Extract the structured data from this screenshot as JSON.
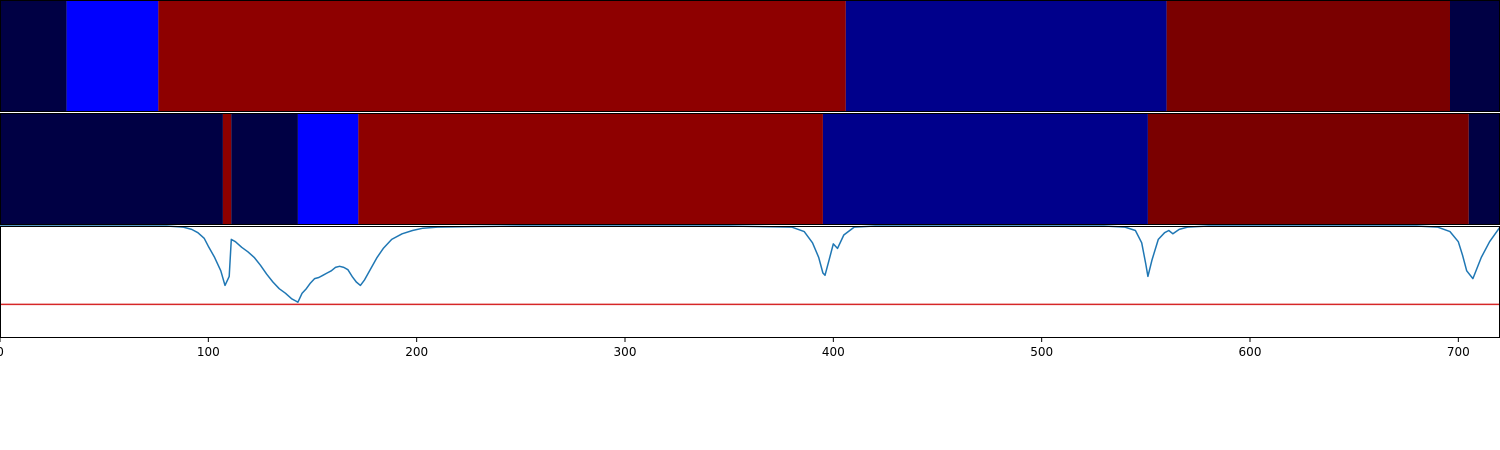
{
  "chart_data": [
    {
      "type": "heatmap",
      "title": "",
      "xlabel": "",
      "ylabel": "",
      "xlim": [
        0,
        720
      ],
      "segments": [
        {
          "start": 0,
          "end": 32,
          "color": "#000044"
        },
        {
          "start": 32,
          "end": 76,
          "color": "#0000ff"
        },
        {
          "start": 76,
          "end": 406,
          "color": "#8e0000"
        },
        {
          "start": 406,
          "end": 560,
          "color": "#00008b"
        },
        {
          "start": 560,
          "end": 696,
          "color": "#7a0000"
        },
        {
          "start": 696,
          "end": 720,
          "color": "#000044"
        }
      ]
    },
    {
      "type": "heatmap",
      "title": "",
      "xlabel": "",
      "ylabel": "",
      "xlim": [
        0,
        720
      ],
      "segments": [
        {
          "start": 0,
          "end": 107,
          "color": "#000044"
        },
        {
          "start": 107,
          "end": 111,
          "color": "#8e0000"
        },
        {
          "start": 111,
          "end": 143,
          "color": "#000044"
        },
        {
          "start": 143,
          "end": 172,
          "color": "#0000ff"
        },
        {
          "start": 172,
          "end": 395,
          "color": "#8e0000"
        },
        {
          "start": 395,
          "end": 551,
          "color": "#00008b"
        },
        {
          "start": 551,
          "end": 705,
          "color": "#7a0000"
        },
        {
          "start": 705,
          "end": 720,
          "color": "#000044"
        }
      ]
    },
    {
      "type": "line",
      "title": "",
      "xlabel": "",
      "ylabel": "",
      "xlim": [
        0,
        720
      ],
      "ylim": [
        0,
        1
      ],
      "xticks": [
        0,
        100,
        200,
        300,
        400,
        500,
        600,
        700
      ],
      "threshold": 0.3,
      "threshold_color": "#d62728",
      "line_color": "#1f77b4",
      "series": [
        {
          "x": [
            0,
            80,
            88,
            92,
            95,
            98,
            100,
            103,
            106,
            108,
            110,
            111,
            113,
            116,
            119,
            122,
            125,
            128,
            131,
            134,
            137,
            140,
            142,
            143,
            145,
            147,
            149,
            151,
            153,
            155,
            157,
            159,
            161,
            163,
            165,
            167,
            169,
            171,
            173,
            175,
            178,
            181,
            184,
            188,
            193,
            198,
            203,
            210,
            250,
            300,
            350,
            380,
            386,
            390,
            393,
            395,
            396,
            398,
            400,
            402,
            405,
            410,
            420,
            500,
            530,
            540,
            545,
            548,
            550,
            551,
            553,
            556,
            559,
            561,
            563,
            566,
            570,
            580,
            600,
            680,
            690,
            696,
            700,
            702,
            704,
            707,
            711,
            715,
            720
          ],
          "y": [
            1.0,
            1.0,
            0.99,
            0.97,
            0.94,
            0.89,
            0.82,
            0.72,
            0.6,
            0.47,
            0.55,
            0.88,
            0.86,
            0.81,
            0.77,
            0.72,
            0.65,
            0.57,
            0.5,
            0.44,
            0.4,
            0.35,
            0.33,
            0.32,
            0.4,
            0.44,
            0.49,
            0.53,
            0.54,
            0.56,
            0.58,
            0.6,
            0.63,
            0.64,
            0.63,
            0.61,
            0.55,
            0.5,
            0.47,
            0.52,
            0.62,
            0.72,
            0.8,
            0.88,
            0.93,
            0.96,
            0.98,
            0.99,
            1.0,
            1.0,
            1.0,
            0.99,
            0.95,
            0.85,
            0.72,
            0.58,
            0.56,
            0.7,
            0.84,
            0.8,
            0.92,
            0.99,
            1.0,
            1.0,
            1.0,
            0.99,
            0.96,
            0.85,
            0.66,
            0.55,
            0.7,
            0.88,
            0.94,
            0.96,
            0.93,
            0.97,
            0.99,
            1.0,
            1.0,
            1.0,
            0.99,
            0.95,
            0.86,
            0.74,
            0.6,
            0.53,
            0.72,
            0.86,
            0.99
          ]
        }
      ]
    }
  ]
}
